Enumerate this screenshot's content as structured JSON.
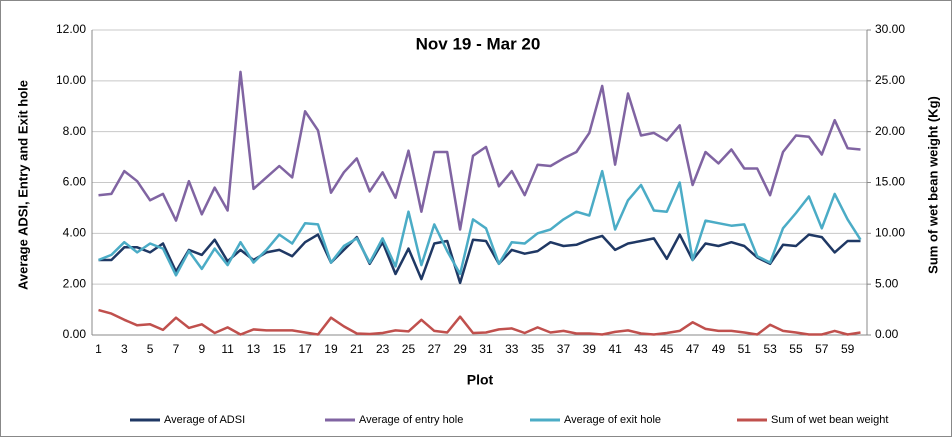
{
  "chart_data": {
    "type": "line",
    "title": "Nov 19 - Mar 20",
    "x_label": "Plot",
    "y_label": "Average ADSI, Entry and Exit hole",
    "y2_label": "Sum of wet bean weight (Kg)",
    "categories": [
      "1",
      null,
      "3",
      null,
      "5",
      null,
      "7",
      null,
      "9",
      null,
      "11",
      null,
      "13",
      null,
      "15",
      null,
      "17",
      null,
      "19",
      null,
      "21",
      null,
      "23",
      null,
      "25",
      null,
      "27",
      null,
      "29",
      null,
      "31",
      null,
      "33",
      null,
      "35",
      null,
      "37",
      null,
      "39",
      null,
      "41",
      null,
      "43",
      null,
      "45",
      null,
      "47",
      null,
      "49",
      null,
      "51",
      null,
      "53",
      null,
      "55",
      null,
      "57",
      null,
      "59",
      null
    ],
    "ylim": [
      0,
      12
    ],
    "yticks": [
      {
        "value": 0,
        "label": "0.00"
      },
      {
        "value": 2,
        "label": "2.00"
      },
      {
        "value": 4,
        "label": "4.00"
      },
      {
        "value": 6,
        "label": "6.00"
      },
      {
        "value": 8,
        "label": "8.00"
      },
      {
        "value": 10,
        "label": "10.00"
      },
      {
        "value": 12,
        "label": "12.00"
      }
    ],
    "y2lim": [
      0,
      30
    ],
    "y2ticks": [
      {
        "value": 0,
        "label": "0.00"
      },
      {
        "value": 5,
        "label": "5.00"
      },
      {
        "value": 10,
        "label": "10.00"
      },
      {
        "value": 15,
        "label": "15.00"
      },
      {
        "value": 20,
        "label": "20.00"
      },
      {
        "value": 25,
        "label": "25.00"
      },
      {
        "value": 30,
        "label": "30.00"
      }
    ],
    "grid": true,
    "legend": "bottom",
    "series": [
      {
        "name": "Average of ADSI",
        "color": "#1f3864",
        "values": [
          2.95,
          2.95,
          3.45,
          3.45,
          3.25,
          3.6,
          2.5,
          3.35,
          3.15,
          3.75,
          2.9,
          3.35,
          2.95,
          3.25,
          3.35,
          3.1,
          3.65,
          3.95,
          2.85,
          3.35,
          3.85,
          2.8,
          3.65,
          2.4,
          3.4,
          2.2,
          3.6,
          3.7,
          2.05,
          3.75,
          3.7,
          2.8,
          3.35,
          3.2,
          3.3,
          3.65,
          3.5,
          3.55,
          3.75,
          3.9,
          3.35,
          3.6,
          3.7,
          3.8,
          3.0,
          3.95,
          2.95,
          3.6,
          3.5,
          3.65,
          3.5,
          3.05,
          2.8,
          3.55,
          3.5,
          3.95,
          3.85,
          3.25,
          3.7,
          3.7
        ]
      },
      {
        "name": "Average of entry hole",
        "color": "#8064a2",
        "values": [
          5.5,
          5.55,
          6.45,
          6.05,
          5.3,
          5.55,
          4.5,
          6.05,
          4.75,
          5.8,
          4.9,
          10.35,
          5.75,
          6.2,
          6.65,
          6.2,
          8.8,
          8.05,
          5.6,
          6.4,
          6.95,
          5.65,
          6.4,
          5.4,
          7.25,
          4.85,
          7.2,
          7.2,
          4.15,
          7.05,
          7.4,
          5.85,
          6.45,
          5.5,
          6.7,
          6.65,
          6.95,
          7.2,
          7.95,
          9.8,
          6.7,
          9.5,
          7.85,
          7.95,
          7.65,
          8.25,
          5.9,
          7.2,
          6.75,
          7.3,
          6.55,
          6.55,
          5.5,
          7.2,
          7.85,
          7.8,
          7.1,
          8.45,
          7.35,
          7.3
        ]
      },
      {
        "name": "Average of exit hole",
        "color": "#4bacc6",
        "values": [
          2.95,
          3.15,
          3.65,
          3.25,
          3.6,
          3.4,
          2.35,
          3.3,
          2.6,
          3.4,
          2.75,
          3.65,
          2.85,
          3.35,
          3.95,
          3.6,
          4.4,
          4.35,
          2.85,
          3.5,
          3.8,
          2.85,
          3.8,
          2.7,
          4.85,
          2.75,
          4.35,
          3.3,
          2.4,
          4.55,
          4.2,
          2.8,
          3.65,
          3.6,
          4.0,
          4.15,
          4.55,
          4.85,
          4.7,
          6.45,
          4.15,
          5.3,
          5.9,
          4.9,
          4.85,
          6.0,
          2.95,
          4.5,
          4.4,
          4.3,
          4.35,
          3.1,
          2.85,
          4.2,
          4.8,
          5.45,
          4.2,
          5.55,
          4.55,
          3.75
        ]
      },
      {
        "name": "Sum of wet bean weight",
        "color": "#c0504d",
        "axis": "y2",
        "values": [
          2.45,
          2.1,
          1.5,
          0.95,
          1.05,
          0.5,
          1.7,
          0.7,
          1.05,
          0.2,
          0.75,
          0.05,
          0.55,
          0.45,
          0.45,
          0.45,
          0.25,
          0.05,
          1.7,
          0.85,
          0.15,
          0.1,
          0.2,
          0.45,
          0.35,
          1.5,
          0.4,
          0.25,
          1.8,
          0.2,
          0.25,
          0.55,
          0.65,
          0.2,
          0.75,
          0.25,
          0.4,
          0.15,
          0.15,
          0.05,
          0.3,
          0.45,
          0.15,
          0.05,
          0.2,
          0.4,
          1.25,
          0.6,
          0.4,
          0.4,
          0.25,
          0.05,
          1.0,
          0.4,
          0.25,
          0.05,
          0.05,
          0.4,
          0.05,
          0.25
        ]
      }
    ]
  }
}
